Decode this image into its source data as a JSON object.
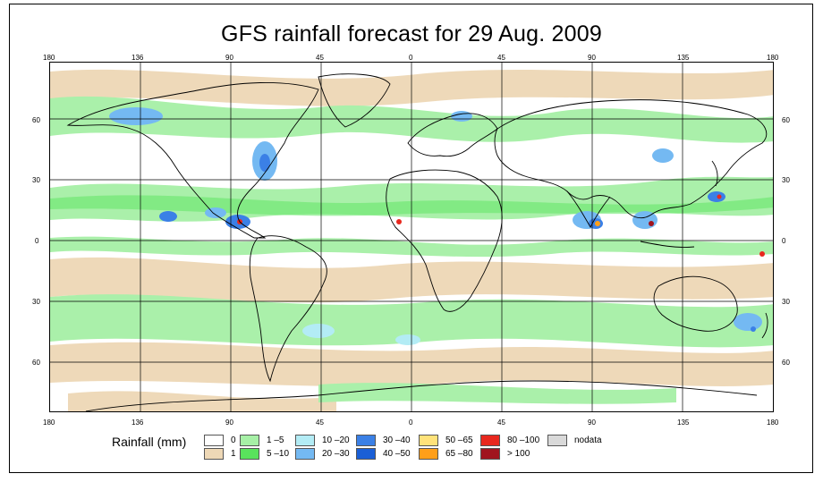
{
  "title": "GFS rainfall forecast for 29 Aug. 2009",
  "axes": {
    "lon_top": [
      "180",
      "136",
      "90",
      "45",
      "0",
      "45",
      "90",
      "135",
      "180"
    ],
    "lon_bottom": [
      "180",
      "136",
      "90",
      "45",
      "0",
      "45",
      "90",
      "135",
      "180"
    ],
    "lat_left": [
      "60",
      "30",
      "0",
      "30",
      "60"
    ],
    "lat_right": [
      "60",
      "30",
      "0",
      "30",
      "60"
    ]
  },
  "legend": {
    "title": "Rainfall (mm)",
    "items": [
      {
        "label": "0",
        "color": "#ffffff"
      },
      {
        "label": "1",
        "color": "#eed8b6"
      },
      {
        "label": "1 –5",
        "color": "#a6f0a6"
      },
      {
        "label": "5 –10",
        "color": "#59e35c"
      },
      {
        "label": "10 –20",
        "color": "#b3ecf5"
      },
      {
        "label": "20 –30",
        "color": "#74b9f2"
      },
      {
        "label": "30 –40",
        "color": "#3b80e6"
      },
      {
        "label": "40 –50",
        "color": "#1a5fd6"
      },
      {
        "label": "50 –65",
        "color": "#ffe27a"
      },
      {
        "label": "65 –80",
        "color": "#ff9f1a"
      },
      {
        "label": "80 –100",
        "color": "#e8281e"
      },
      {
        "label": "> 100",
        "color": "#a0141e"
      },
      {
        "label": "nodata",
        "color": "#d9d9d9"
      }
    ]
  }
}
